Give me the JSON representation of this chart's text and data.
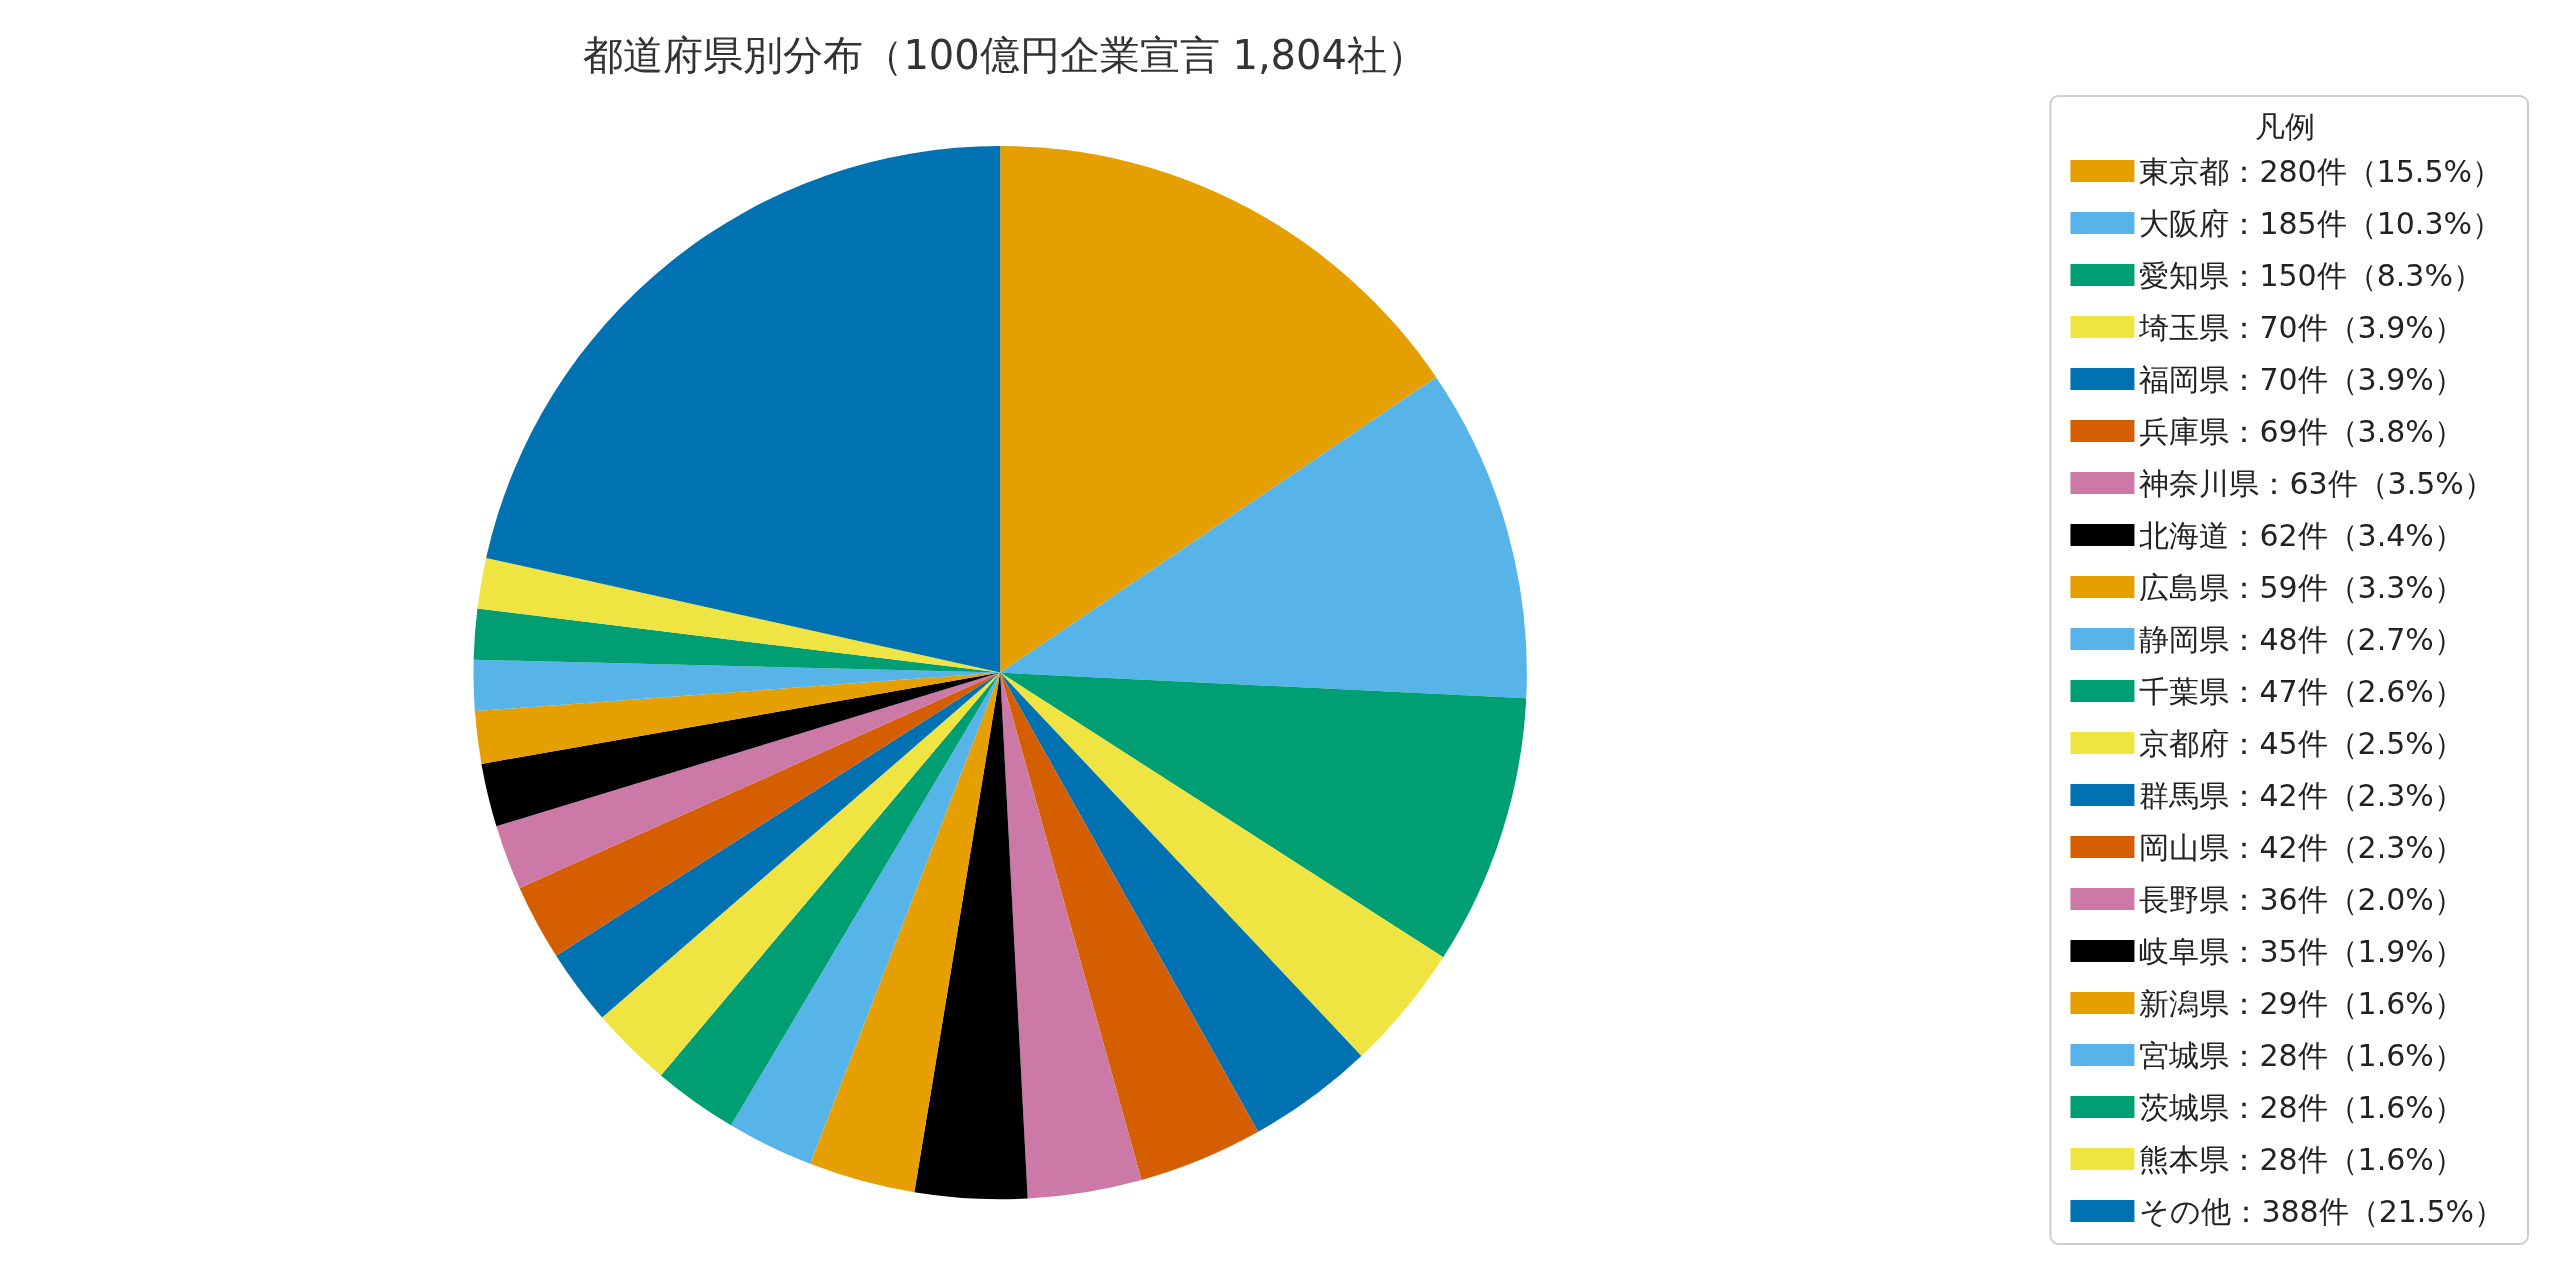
{
  "chart_data": {
    "type": "pie",
    "title": "都道府県別分布（100億円企業宣言 1,804社）",
    "legend_title": "凡例",
    "legend": "right",
    "categories": [
      "東京都：280件（15.5%）",
      "大阪府：185件（10.3%）",
      "愛知県：150件（8.3%）",
      "埼玉県：70件（3.9%）",
      "福岡県：70件（3.9%）",
      "兵庫県：69件（3.8%）",
      "神奈川県：63件（3.5%）",
      "北海道：62件（3.4%）",
      "広島県：59件（3.3%）",
      "静岡県：48件（2.7%）",
      "千葉県：47件（2.6%）",
      "京都府：45件（2.5%）",
      "群馬県：42件（2.3%）",
      "岡山県：42件（2.3%）",
      "長野県：36件（2.0%）",
      "岐阜県：35件（1.9%）",
      "新潟県：29件（1.6%）",
      "宮城県：28件（1.6%）",
      "茨城県：28件（1.6%）",
      "熊本県：28件（1.6%）",
      "その他：388件（21.5%）"
    ],
    "values": [
      280,
      185,
      150,
      70,
      70,
      69,
      63,
      62,
      59,
      48,
      47,
      45,
      42,
      42,
      36,
      35,
      29,
      28,
      28,
      28,
      388
    ],
    "colors": [
      "#e69f00",
      "#56b4e9",
      "#009e73",
      "#f0e442",
      "#0072b2",
      "#d55e00",
      "#cc79a7",
      "#000000",
      "#e69f00",
      "#56b4e9",
      "#009e73",
      "#f0e442",
      "#0072b2",
      "#d55e00",
      "#cc79a7",
      "#000000",
      "#e69f00",
      "#56b4e9",
      "#009e73",
      "#f0e442",
      "#0072b2"
    ]
  }
}
